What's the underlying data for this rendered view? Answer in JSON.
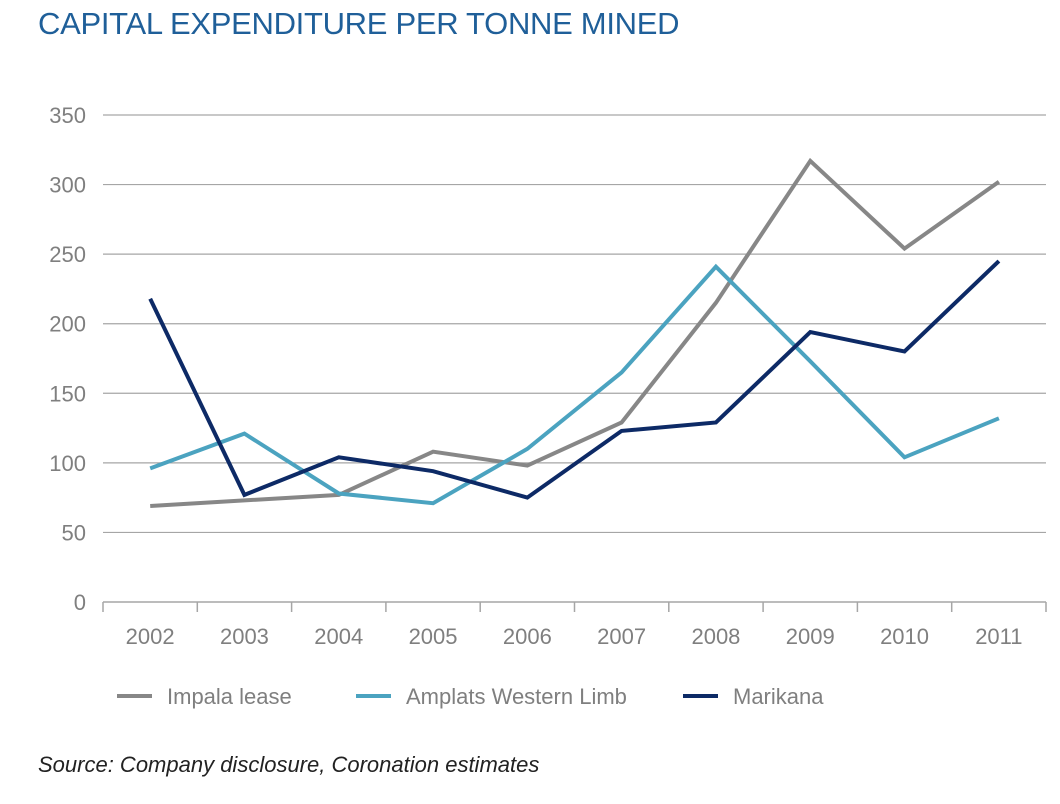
{
  "chart_data": {
    "type": "line",
    "title": "CAPITAL EXPENDITURE PER TONNE MINED",
    "xlabel": "",
    "ylabel": "",
    "categories": [
      "2002",
      "2003",
      "2004",
      "2005",
      "2006",
      "2007",
      "2008",
      "2009",
      "2010",
      "2011"
    ],
    "yticks": [
      0,
      50,
      100,
      150,
      200,
      250,
      300,
      350
    ],
    "ylim": [
      0,
      350
    ],
    "grid": true,
    "legend_position": "bottom-left",
    "series": [
      {
        "name": "Impala lease",
        "color": "#878787",
        "values": [
          69,
          73,
          77,
          108,
          98,
          129,
          215,
          317,
          254,
          302
        ]
      },
      {
        "name": "Amplats Western Limb",
        "color": "#4ba3c0",
        "values": [
          96,
          121,
          78,
          71,
          110,
          165,
          241,
          173,
          104,
          132
        ]
      },
      {
        "name": "Marikana",
        "color": "#0d2a66",
        "values": [
          218,
          77,
          104,
          94,
          75,
          123,
          129,
          194,
          180,
          245
        ]
      }
    ],
    "source": "Source: Company disclosure, Coronation estimates"
  }
}
